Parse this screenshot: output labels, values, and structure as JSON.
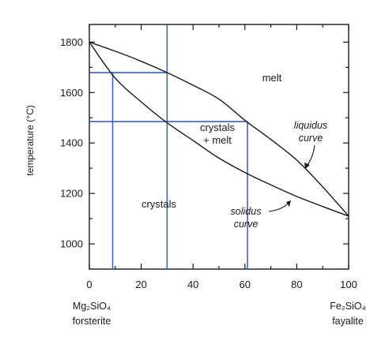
{
  "chart_data": {
    "type": "phase-diagram",
    "ylabel": "temperature (°C)",
    "xlim": [
      0,
      100
    ],
    "ylim": [
      900,
      1870
    ],
    "xticks": [
      0,
      20,
      40,
      60,
      80,
      100
    ],
    "yticks": [
      1000,
      1200,
      1400,
      1600,
      1800
    ],
    "endmembers": {
      "left": {
        "formula": "Mg₂SiO₄",
        "name": "forsterite"
      },
      "right": {
        "formula": "Fe₂SiO₄",
        "name": "fayalite"
      }
    },
    "liquidus": {
      "label_line1": "liquidus",
      "label_line2": "curve",
      "points": [
        [
          0,
          1800
        ],
        [
          10,
          1764
        ],
        [
          20,
          1724
        ],
        [
          30,
          1679
        ],
        [
          40,
          1629
        ],
        [
          50,
          1574
        ],
        [
          60,
          1490
        ],
        [
          70,
          1414
        ],
        [
          80,
          1332
        ],
        [
          90,
          1226
        ],
        [
          100,
          1110
        ]
      ]
    },
    "solidus": {
      "label_line1": "solidus",
      "label_line2": "curve",
      "points": [
        [
          0,
          1800
        ],
        [
          10,
          1657
        ],
        [
          20,
          1563
        ],
        [
          30,
          1480
        ],
        [
          40,
          1410
        ],
        [
          50,
          1340
        ],
        [
          60,
          1283
        ],
        [
          70,
          1234
        ],
        [
          80,
          1188
        ],
        [
          90,
          1148
        ],
        [
          100,
          1110
        ]
      ]
    },
    "regions": {
      "melt": "melt",
      "two_phase_line1": "crystals",
      "two_phase_line2": "+ melt",
      "solid": "crystals"
    },
    "guides": [
      {
        "x": 30,
        "y_from": 900,
        "y_to": 1868
      },
      {
        "x": 9,
        "y_from": 900,
        "y_to": 1679
      },
      {
        "x": 61,
        "y_from": 900,
        "y_to": 1485
      },
      {
        "y": 1679,
        "x_from": 0,
        "x_to": 30
      },
      {
        "y": 1485,
        "x_from": 0,
        "x_to": 61
      }
    ],
    "colors": {
      "guide": "#3a63c8",
      "curve": "#1a1a1a"
    }
  }
}
